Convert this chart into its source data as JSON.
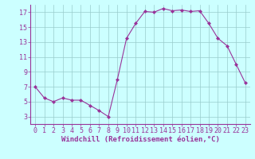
{
  "x": [
    0,
    1,
    2,
    3,
    4,
    5,
    6,
    7,
    8,
    9,
    10,
    11,
    12,
    13,
    14,
    15,
    16,
    17,
    18,
    19,
    20,
    21,
    22,
    23
  ],
  "y": [
    7.0,
    5.5,
    5.0,
    5.5,
    5.2,
    5.2,
    4.5,
    3.8,
    3.0,
    8.0,
    13.5,
    15.5,
    17.1,
    17.0,
    17.5,
    17.2,
    17.3,
    17.1,
    17.2,
    15.5,
    13.5,
    12.5,
    10.0,
    7.5
  ],
  "line_color": "#993399",
  "marker": "D",
  "marker_size": 2,
  "bg_color": "#ccffff",
  "grid_color": "#99cccc",
  "xlabel": "Windchill (Refroidissement éolien,°C)",
  "ylim": [
    2.0,
    18.0
  ],
  "xlim": [
    -0.5,
    23.5
  ],
  "yticks": [
    3,
    5,
    7,
    9,
    11,
    13,
    15,
    17
  ],
  "xticks": [
    0,
    1,
    2,
    3,
    4,
    5,
    6,
    7,
    8,
    9,
    10,
    11,
    12,
    13,
    14,
    15,
    16,
    17,
    18,
    19,
    20,
    21,
    22,
    23
  ],
  "tick_color": "#993399",
  "label_fontsize": 6.5,
  "tick_fontsize": 6.0,
  "linewidth": 0.8
}
